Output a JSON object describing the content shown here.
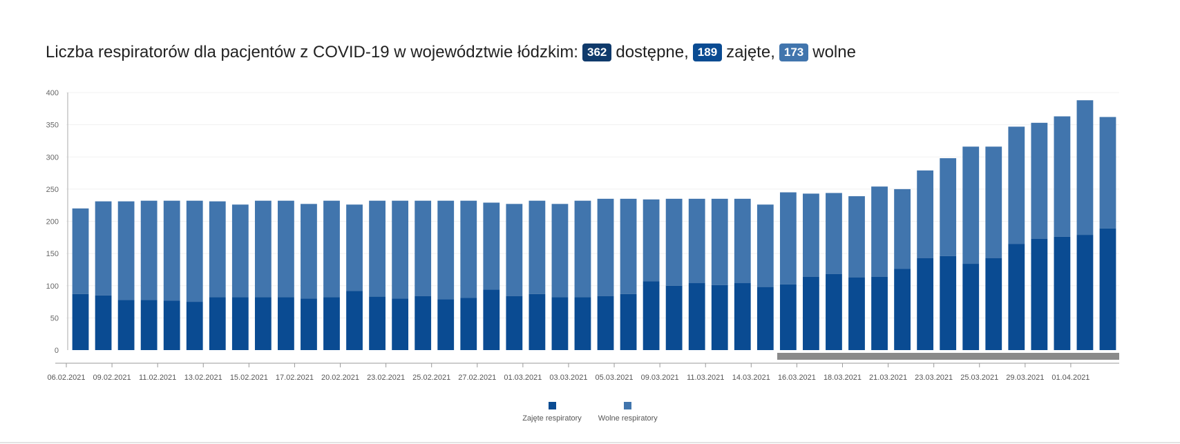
{
  "title": {
    "text_before": "Liczba respiratorów dla pacjentów z COVID-19 w województwie łódzkim:",
    "total_value": "362",
    "total_label": "dostępne,",
    "occupied_value": "189",
    "occupied_label": "zajęte,",
    "free_value": "173",
    "free_label": "wolne"
  },
  "colors": {
    "occupied": "#0a4b92",
    "free": "#4175ad",
    "badge_total": "#0f3a6b",
    "badge_occupied": "#0a4b92",
    "badge_free": "#4175ad",
    "scroll_thumb": "#8a8a8a"
  },
  "legend": {
    "occupied_label": "Zajęte respiratory",
    "free_label": "Wolne respiratory"
  },
  "chart_data": {
    "type": "bar",
    "stacked": true,
    "ylim": [
      0,
      400
    ],
    "yticks": [
      0,
      50,
      100,
      150,
      200,
      250,
      300,
      350,
      400
    ],
    "x_tick_labels": [
      {
        "index": 0,
        "label": "06.02.2021"
      },
      {
        "index": 2,
        "label": "09.02.2021"
      },
      {
        "index": 4,
        "label": "11.02.2021"
      },
      {
        "index": 6,
        "label": "13.02.2021"
      },
      {
        "index": 8,
        "label": "15.02.2021"
      },
      {
        "index": 10,
        "label": "17.02.2021"
      },
      {
        "index": 12,
        "label": "20.02.2021"
      },
      {
        "index": 14,
        "label": "23.02.2021"
      },
      {
        "index": 16,
        "label": "25.02.2021"
      },
      {
        "index": 18,
        "label": "27.02.2021"
      },
      {
        "index": 20,
        "label": "01.03.2021"
      },
      {
        "index": 22,
        "label": "03.03.2021"
      },
      {
        "index": 24,
        "label": "05.03.2021"
      },
      {
        "index": 26,
        "label": "09.03.2021"
      },
      {
        "index": 28,
        "label": "11.03.2021"
      },
      {
        "index": 30,
        "label": "14.03.2021"
      },
      {
        "index": 32,
        "label": "16.03.2021"
      },
      {
        "index": 34,
        "label": "18.03.2021"
      },
      {
        "index": 36,
        "label": "21.03.2021"
      },
      {
        "index": 38,
        "label": "23.03.2021"
      },
      {
        "index": 40,
        "label": "25.03.2021"
      },
      {
        "index": 42,
        "label": "29.03.2021"
      },
      {
        "index": 44,
        "label": "01.04.2021"
      }
    ],
    "series": [
      {
        "name": "Zajęte respiratory",
        "values": [
          87,
          85,
          78,
          78,
          77,
          75,
          82,
          82,
          82,
          82,
          80,
          82,
          92,
          83,
          80,
          84,
          79,
          81,
          94,
          84,
          87,
          82,
          82,
          84,
          87,
          107,
          100,
          104,
          101,
          104,
          98,
          102,
          114,
          118,
          113,
          114,
          126,
          143,
          146,
          134,
          143,
          165,
          173,
          176,
          179,
          189
        ]
      },
      {
        "name": "Wolne respiratory",
        "values": [
          133,
          146,
          153,
          154,
          155,
          157,
          149,
          144,
          150,
          150,
          147,
          150,
          134,
          149,
          152,
          148,
          153,
          151,
          135,
          143,
          145,
          145,
          150,
          151,
          148,
          127,
          135,
          131,
          134,
          131,
          128,
          143,
          129,
          126,
          126,
          140,
          124,
          136,
          152,
          182,
          173,
          182,
          180,
          187,
          209,
          173
        ]
      }
    ]
  }
}
